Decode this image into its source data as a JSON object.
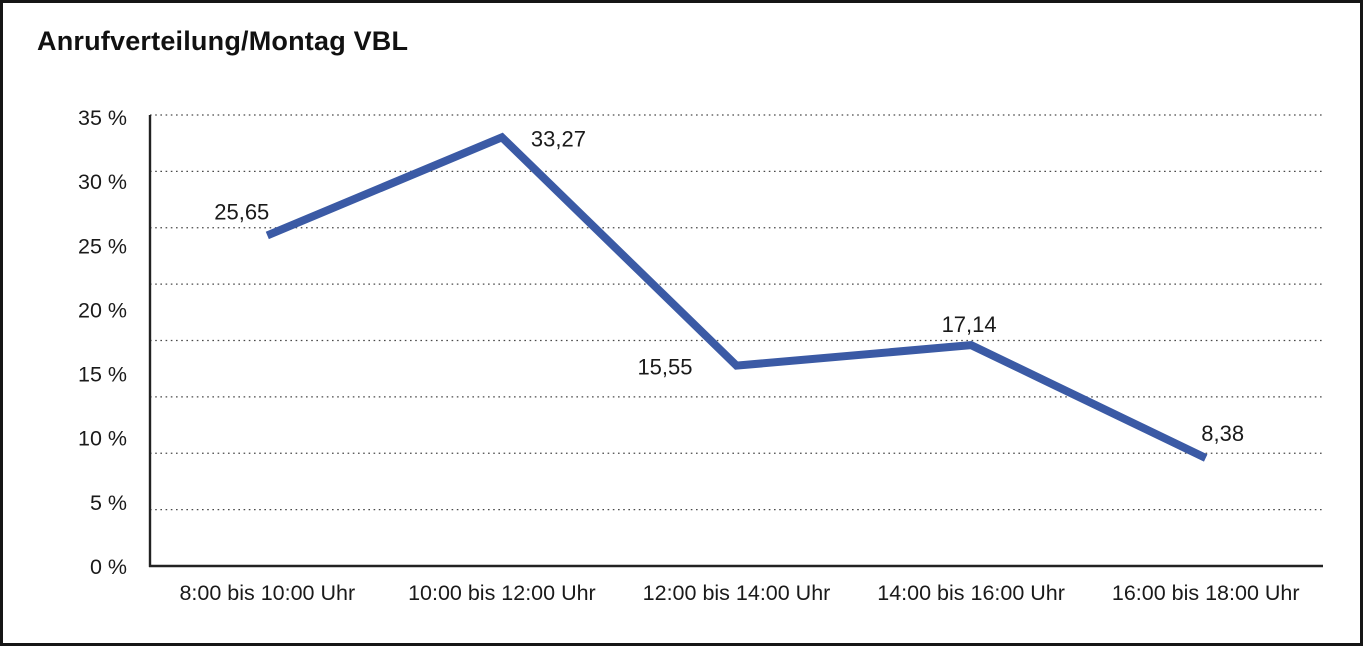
{
  "chart_data": {
    "type": "line",
    "title": "Anrufverteilung/Montag VBL",
    "categories": [
      "8:00 bis 10:00 Uhr",
      "10:00 bis 12:00 Uhr",
      "12:00 bis 14:00 Uhr",
      "14:00 bis 16:00 Uhr",
      "16:00 bis 18:00 Uhr"
    ],
    "values": [
      25.65,
      33.27,
      15.55,
      17.14,
      8.38
    ],
    "value_labels": [
      "25,65",
      "33,27",
      "15,55",
      "17,14",
      "8,38"
    ],
    "y_ticks": [
      "35 %",
      "30 %",
      "25 %",
      "20 %",
      "15 %",
      "10 %",
      "5 %",
      "0 %"
    ],
    "ylim": [
      0,
      35
    ],
    "xlabel": "",
    "ylabel": "",
    "legend": "none",
    "grid": "horizontal-dotted",
    "line_color": "#3B5AA5",
    "text_color": "#1a1a1a",
    "axis_color": "#222222",
    "grid_color": "#4a4a4a"
  }
}
